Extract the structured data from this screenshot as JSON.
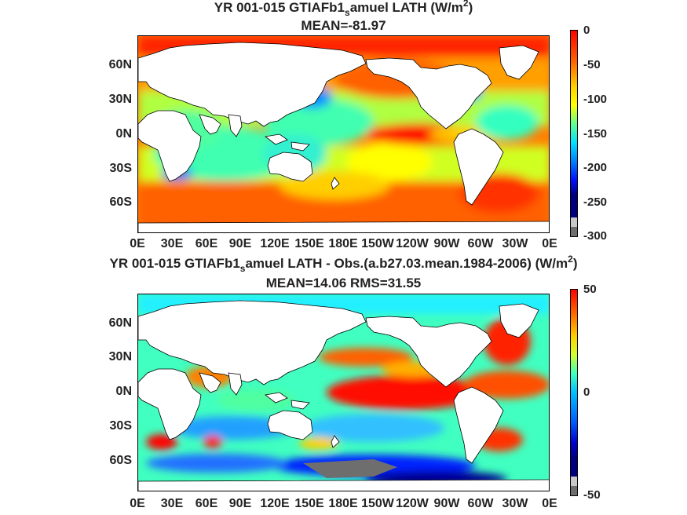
{
  "panels": [
    {
      "title": "YR 001-015 GTIAFb1",
      "title_sub": "s",
      "title_tail": "amuel  LATH (W/m",
      "title_sup": "2",
      "title_end": ")",
      "stats": "MEAN=-81.97",
      "lat_labels": [
        "60N",
        "30N",
        "0N",
        "30S",
        "60S"
      ],
      "lon_labels": [
        "0E",
        "30E",
        "60E",
        "90E",
        "120E",
        "150E",
        "180E",
        "150W",
        "120W",
        "90W",
        "60W",
        "30W",
        "0E"
      ],
      "colorbar": {
        "labels": [
          "0",
          "-50",
          "-100",
          "-150",
          "-200",
          "-250",
          "-300"
        ],
        "min": -300,
        "max": 0
      }
    },
    {
      "title": "YR 001-015 GTIAFb1",
      "title_sub": "s",
      "title_tail": "amuel LATH - Obs.(a.b27.03.mean.1984-2006) (W/m",
      "title_sup": "2",
      "title_end": ")",
      "stats": "MEAN=14.06 RMS=31.55",
      "lat_labels": [
        "60N",
        "30N",
        "0N",
        "30S",
        "60S"
      ],
      "lon_labels": [
        "0E",
        "30E",
        "60E",
        "90E",
        "120E",
        "150E",
        "180E",
        "150W",
        "120W",
        "90W",
        "60W",
        "30W",
        "0E"
      ],
      "colorbar": {
        "labels": [
          "50",
          "0",
          "-50"
        ],
        "min": -50,
        "max": 50
      }
    }
  ],
  "colors": {
    "jet_dark_red": "#a50000",
    "jet_red": "#ff0000",
    "jet_orange": "#ff7f00",
    "jet_yellow": "#ffff00",
    "jet_cyan": "#00ffff",
    "jet_blue": "#0000ff",
    "jet_dark_blue": "#00007f",
    "land": "#ffffff",
    "missing": "#6e6e6e"
  }
}
